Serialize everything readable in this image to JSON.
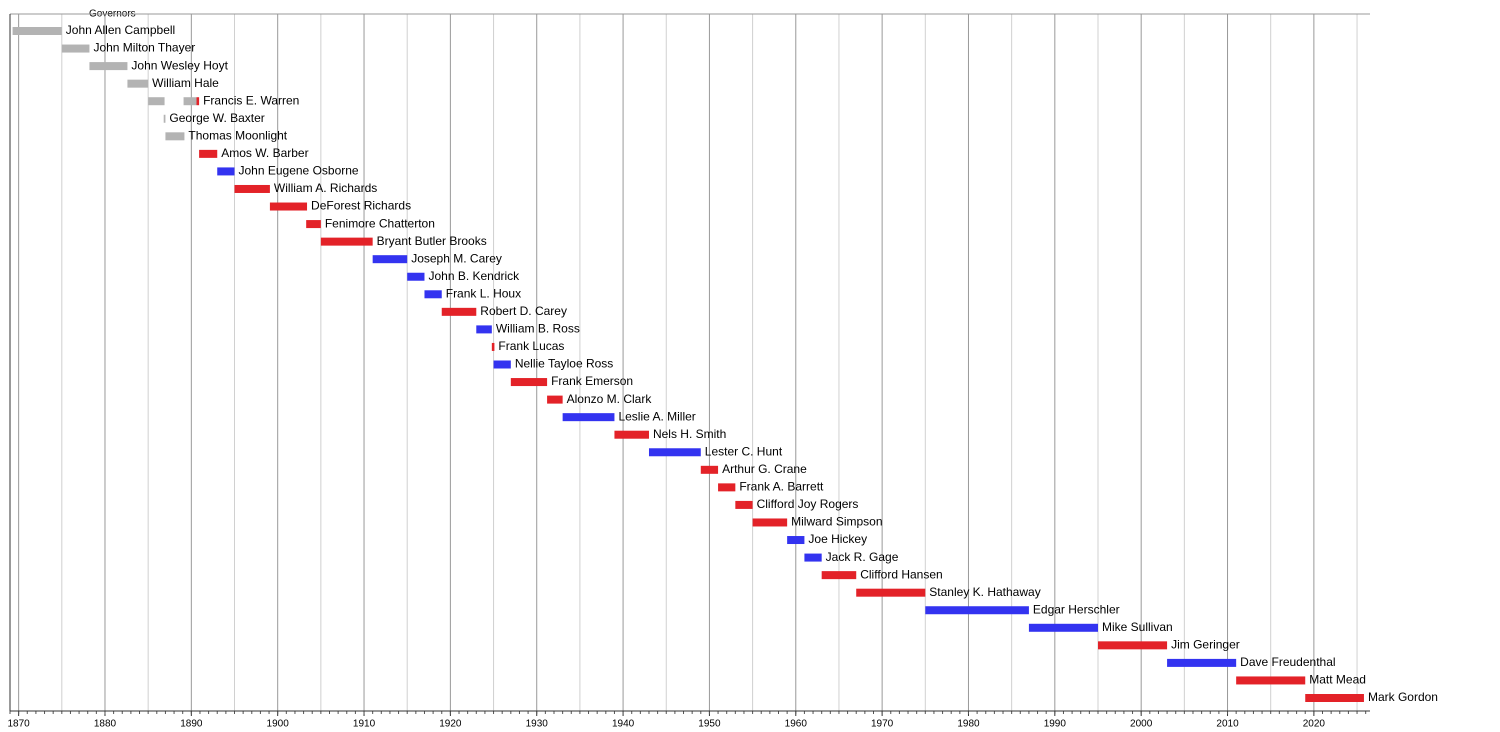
{
  "chart_data": {
    "type": "timeline",
    "title": "Governors",
    "xlim": [
      1869,
      2026.5
    ],
    "xticks": [
      1870,
      1880,
      1890,
      1900,
      1910,
      1920,
      1930,
      1940,
      1950,
      1960,
      1970,
      1980,
      1990,
      2000,
      2010,
      2020
    ],
    "minor_xticks": [
      1875,
      1885,
      1895,
      1905,
      1915,
      1925,
      1935,
      1945,
      1955,
      1965,
      1975,
      1985,
      1995,
      2005,
      2015,
      2025
    ],
    "grid": true,
    "rows": [
      {
        "name": "John Allen Campbell",
        "spans": [
          {
            "start": 1869.3,
            "end": 1875,
            "color": "#b3b3b3"
          }
        ]
      },
      {
        "name": "John Milton Thayer",
        "spans": [
          {
            "start": 1875,
            "end": 1878.2,
            "color": "#b3b3b3"
          }
        ]
      },
      {
        "name": "John Wesley Hoyt",
        "spans": [
          {
            "start": 1878.2,
            "end": 1882.6,
            "color": "#b3b3b3"
          }
        ]
      },
      {
        "name": "William Hale",
        "spans": [
          {
            "start": 1882.6,
            "end": 1885,
            "color": "#b3b3b3"
          }
        ]
      },
      {
        "name": "Francis E. Warren",
        "spans": [
          {
            "start": 1885,
            "end": 1886.9,
            "color": "#b3b3b3"
          },
          {
            "start": 1889.1,
            "end": 1890.6,
            "color": "#b3b3b3"
          },
          {
            "start": 1890.6,
            "end": 1890.9,
            "color": "#e32228"
          }
        ]
      },
      {
        "name": "George W. Baxter",
        "spans": [
          {
            "start": 1886.8,
            "end": 1887,
            "color": "#b3b3b3"
          }
        ]
      },
      {
        "name": "Thomas Moonlight",
        "spans": [
          {
            "start": 1887,
            "end": 1889.2,
            "color": "#b3b3b3"
          }
        ]
      },
      {
        "name": "Amos W. Barber",
        "spans": [
          {
            "start": 1890.9,
            "end": 1893,
            "color": "#e32228"
          }
        ]
      },
      {
        "name": "John Eugene Osborne",
        "spans": [
          {
            "start": 1893,
            "end": 1895,
            "color": "#3333f0"
          }
        ]
      },
      {
        "name": "William A. Richards",
        "spans": [
          {
            "start": 1895,
            "end": 1899.1,
            "color": "#e32228"
          }
        ]
      },
      {
        "name": "DeForest Richards",
        "spans": [
          {
            "start": 1899.1,
            "end": 1903.4,
            "color": "#e32228"
          }
        ]
      },
      {
        "name": "Fenimore Chatterton",
        "spans": [
          {
            "start": 1903.3,
            "end": 1905,
            "color": "#e32228"
          }
        ]
      },
      {
        "name": "Bryant Butler Brooks",
        "spans": [
          {
            "start": 1905,
            "end": 1911,
            "color": "#e32228"
          }
        ]
      },
      {
        "name": "Joseph M. Carey",
        "spans": [
          {
            "start": 1911,
            "end": 1915,
            "color": "#3333f0"
          }
        ]
      },
      {
        "name": "John B. Kendrick",
        "spans": [
          {
            "start": 1915,
            "end": 1917,
            "color": "#3333f0"
          }
        ]
      },
      {
        "name": "Frank L. Houx",
        "spans": [
          {
            "start": 1917,
            "end": 1919,
            "color": "#3333f0"
          }
        ]
      },
      {
        "name": "Robert D. Carey",
        "spans": [
          {
            "start": 1919,
            "end": 1923,
            "color": "#e32228"
          }
        ]
      },
      {
        "name": "William B. Ross",
        "spans": [
          {
            "start": 1923,
            "end": 1924.8,
            "color": "#3333f0"
          }
        ]
      },
      {
        "name": "Frank Lucas",
        "spans": [
          {
            "start": 1924.8,
            "end": 1925.1,
            "color": "#e32228"
          }
        ]
      },
      {
        "name": "Nellie Tayloe Ross",
        "spans": [
          {
            "start": 1925,
            "end": 1927,
            "color": "#3333f0"
          }
        ]
      },
      {
        "name": "Frank Emerson",
        "spans": [
          {
            "start": 1927,
            "end": 1931.2,
            "color": "#e32228"
          }
        ]
      },
      {
        "name": "Alonzo M. Clark",
        "spans": [
          {
            "start": 1931.2,
            "end": 1933,
            "color": "#e32228"
          }
        ]
      },
      {
        "name": "Leslie A. Miller",
        "spans": [
          {
            "start": 1933,
            "end": 1939,
            "color": "#3333f0"
          }
        ]
      },
      {
        "name": "Nels H. Smith",
        "spans": [
          {
            "start": 1939,
            "end": 1943,
            "color": "#e32228"
          }
        ]
      },
      {
        "name": "Lester C. Hunt",
        "spans": [
          {
            "start": 1943,
            "end": 1949,
            "color": "#3333f0"
          }
        ]
      },
      {
        "name": "Arthur G. Crane",
        "spans": [
          {
            "start": 1949,
            "end": 1951,
            "color": "#e32228"
          }
        ]
      },
      {
        "name": "Frank A. Barrett",
        "spans": [
          {
            "start": 1951,
            "end": 1953,
            "color": "#e32228"
          }
        ]
      },
      {
        "name": "Clifford Joy Rogers",
        "spans": [
          {
            "start": 1953,
            "end": 1955,
            "color": "#e32228"
          }
        ]
      },
      {
        "name": "Milward Simpson",
        "spans": [
          {
            "start": 1955,
            "end": 1959,
            "color": "#e32228"
          }
        ]
      },
      {
        "name": "Joe Hickey",
        "spans": [
          {
            "start": 1959,
            "end": 1961,
            "color": "#3333f0"
          }
        ]
      },
      {
        "name": "Jack R. Gage",
        "spans": [
          {
            "start": 1961,
            "end": 1963,
            "color": "#3333f0"
          }
        ]
      },
      {
        "name": "Clifford Hansen",
        "spans": [
          {
            "start": 1963,
            "end": 1967,
            "color": "#e32228"
          }
        ]
      },
      {
        "name": "Stanley K. Hathaway",
        "spans": [
          {
            "start": 1967,
            "end": 1975,
            "color": "#e32228"
          }
        ]
      },
      {
        "name": "Edgar Herschler",
        "spans": [
          {
            "start": 1975,
            "end": 1987,
            "color": "#3333f0"
          }
        ]
      },
      {
        "name": "Mike Sullivan",
        "spans": [
          {
            "start": 1987,
            "end": 1995,
            "color": "#3333f0"
          }
        ]
      },
      {
        "name": "Jim Geringer",
        "spans": [
          {
            "start": 1995,
            "end": 2003,
            "color": "#e32228"
          }
        ]
      },
      {
        "name": "Dave Freudenthal",
        "spans": [
          {
            "start": 2003,
            "end": 2011,
            "color": "#3333f0"
          }
        ]
      },
      {
        "name": "Matt Mead",
        "spans": [
          {
            "start": 2011,
            "end": 2019,
            "color": "#e32228"
          }
        ]
      },
      {
        "name": "Mark Gordon",
        "spans": [
          {
            "start": 2019,
            "end": 2025.8,
            "color": "#e32228"
          }
        ]
      }
    ]
  }
}
